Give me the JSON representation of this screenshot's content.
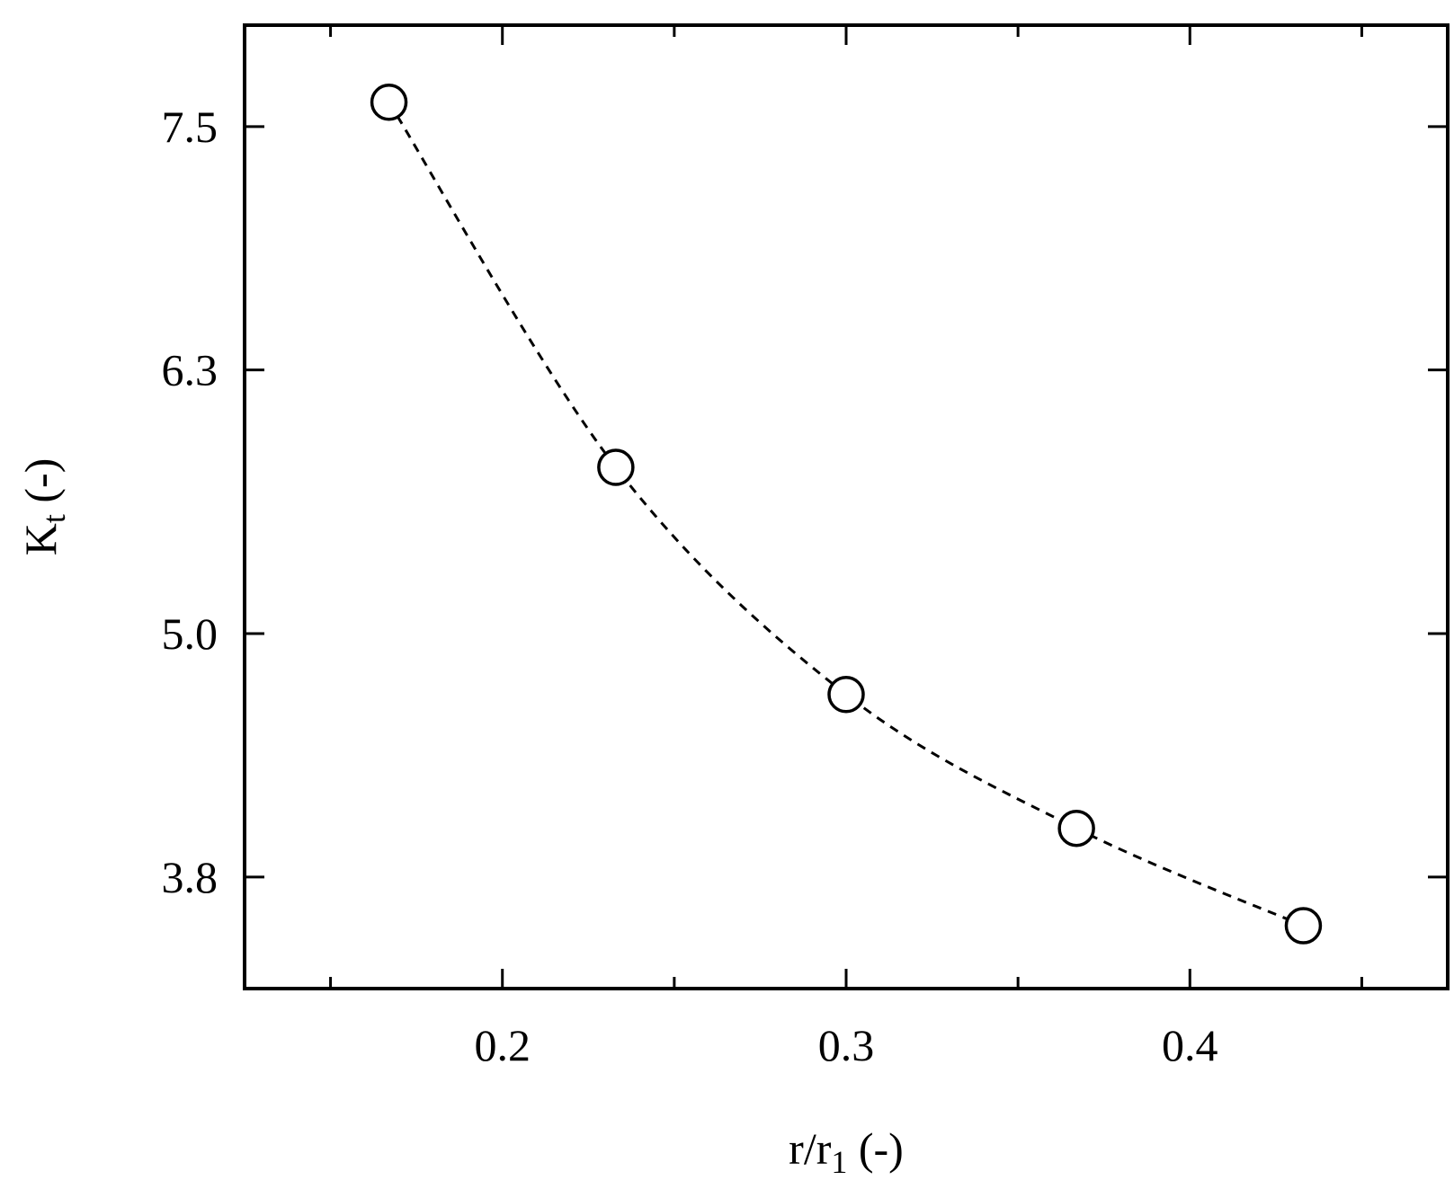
{
  "chart_data": {
    "type": "line",
    "xlabel": {
      "main": "r/r",
      "sub": "1",
      "unit": " (-)"
    },
    "ylabel": {
      "main": "K",
      "sub": "t",
      "unit": " (-)"
    },
    "xlim": [
      0.125,
      0.475
    ],
    "ylim": [
      3.25,
      8.0
    ],
    "xticks": [
      {
        "value": 0.2,
        "label": "0.2"
      },
      {
        "value": 0.3,
        "label": "0.3"
      },
      {
        "value": 0.4,
        "label": "0.4"
      }
    ],
    "xminor_ticks": [
      0.15,
      0.25,
      0.35,
      0.45
    ],
    "yticks": [
      {
        "value": 3.8,
        "label": "3.8"
      },
      {
        "value": 5.0,
        "label": "5.0"
      },
      {
        "value": 6.3,
        "label": "6.3"
      },
      {
        "value": 7.5,
        "label": "7.5"
      }
    ],
    "grid": false,
    "series": [
      {
        "marker": "open-circle",
        "line": "dashed",
        "color": "#000000",
        "x": [
          0.167,
          0.233,
          0.3,
          0.367,
          0.433
        ],
        "y": [
          7.62,
          5.82,
          4.7,
          4.04,
          3.56
        ]
      }
    ]
  }
}
